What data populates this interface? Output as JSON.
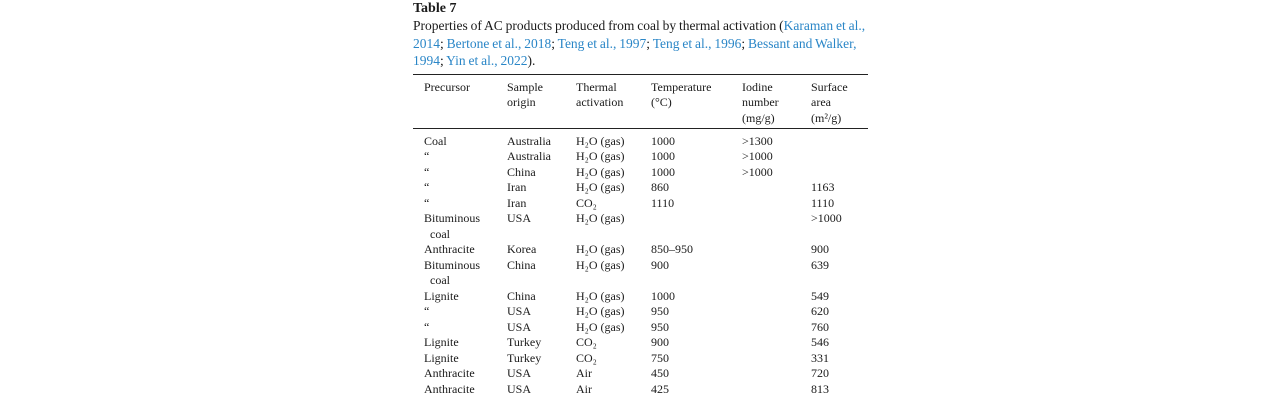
{
  "table": {
    "label": "Table 7",
    "caption": {
      "text": "Properties of AC products produced from coal by thermal activation (",
      "references": [
        "Karaman et al., 2014",
        "Bertone et al., 2018",
        "Teng et al., 1997",
        "Teng et al., 1996",
        "Bessant and Walker, 1994",
        "Yin et al., 2022"
      ],
      "close": ")."
    },
    "headers": [
      [
        "Precursor"
      ],
      [
        "Sample",
        "origin"
      ],
      [
        "Thermal",
        "activation"
      ],
      [
        "Temperature",
        "(°C)"
      ],
      [
        "Iodine",
        "number",
        "(mg/g)"
      ],
      [
        "Surface",
        "area",
        "(m²/g)"
      ]
    ],
    "rows": [
      [
        "Coal",
        "Australia",
        "H₂O (gas)",
        "1000",
        ">1300",
        ""
      ],
      [
        "“",
        "Australia",
        "H₂O (gas)",
        "1000",
        ">1000",
        ""
      ],
      [
        "“",
        "China",
        "H₂O (gas)",
        "1000",
        ">1000",
        ""
      ],
      [
        "“",
        "Iran",
        "H₂O (gas)",
        "860",
        "",
        "1163"
      ],
      [
        "“",
        "Iran",
        "CO₂",
        "1110",
        "",
        "1110"
      ],
      [
        "Bituminous coal",
        "USA",
        "H₂O (gas)",
        "",
        "",
        ">1000"
      ],
      [
        "Anthracite",
        "Korea",
        "H₂O (gas)",
        "850–950",
        "",
        "900"
      ],
      [
        "Bituminous coal",
        "China",
        "H₂O (gas)",
        "900",
        "",
        "639"
      ],
      [
        "Lignite",
        "China",
        "H₂O (gas)",
        "1000",
        "",
        "549"
      ],
      [
        "“",
        "USA",
        "H₂O (gas)",
        "950",
        "",
        "620"
      ],
      [
        "“",
        "USA",
        "H₂O (gas)",
        "950",
        "",
        "760"
      ],
      [
        "Lignite",
        "Turkey",
        "CO₂",
        "900",
        "",
        "546"
      ],
      [
        "Lignite",
        "Turkey",
        "CO₂",
        "750",
        "",
        "331"
      ],
      [
        "Anthracite",
        "USA",
        "Air",
        "450",
        "",
        "720"
      ],
      [
        "Anthracite",
        "USA",
        "Air",
        "425",
        "",
        "813"
      ]
    ]
  }
}
